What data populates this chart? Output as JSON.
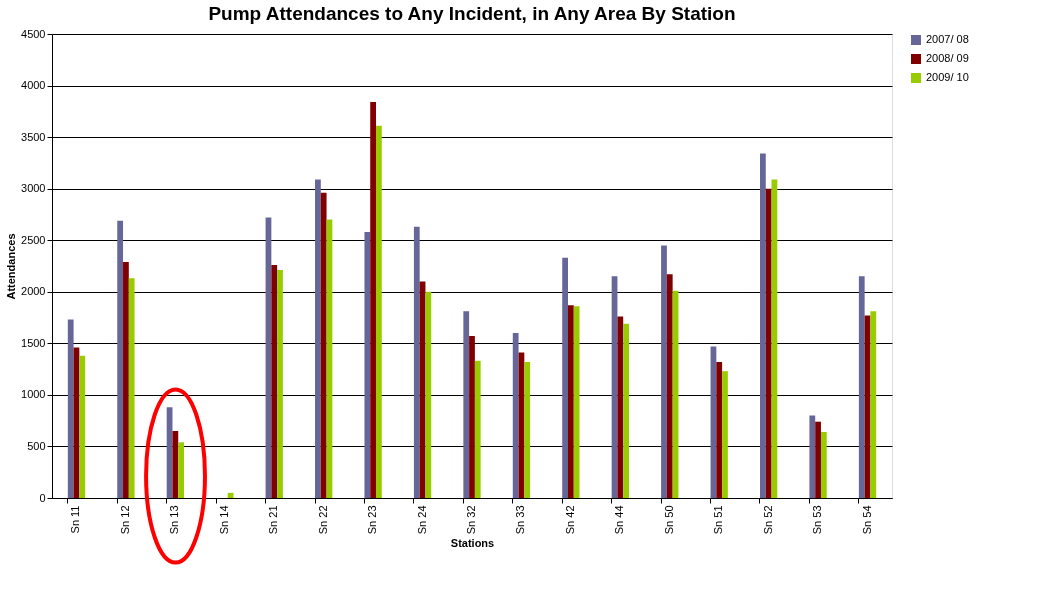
{
  "chart_data": {
    "type": "bar",
    "title": "Pump Attendances to Any Incident, in Any Area By Station",
    "xlabel": "Stations",
    "ylabel": "Attendances",
    "categories": [
      "Sn 11",
      "Sn 12",
      "Sn 13",
      "Sn 14",
      "Sn 21",
      "Sn 22",
      "Sn 23",
      "Sn 24",
      "Sn 32",
      "Sn 33",
      "Sn 42",
      "Sn 44",
      "Sn 50",
      "Sn 51",
      "Sn 52",
      "Sn 53",
      "Sn 54"
    ],
    "series": [
      {
        "name": "2007/ 08",
        "color": "#666699",
        "values": [
          1730,
          2690,
          880,
          null,
          2720,
          3090,
          2580,
          2630,
          1810,
          1600,
          2330,
          2150,
          2450,
          1470,
          3340,
          800,
          2150
        ]
      },
      {
        "name": "2008/ 09",
        "color": "#800000",
        "values": [
          1460,
          2290,
          650,
          null,
          2260,
          2960,
          3840,
          2100,
          1570,
          1410,
          1870,
          1760,
          2170,
          1320,
          3000,
          740,
          1770
        ]
      },
      {
        "name": "2009/ 10",
        "color": "#99cc00",
        "values": [
          1380,
          2130,
          540,
          50,
          2210,
          2700,
          3610,
          2000,
          1330,
          1320,
          1860,
          1690,
          2010,
          1230,
          3090,
          640,
          1810
        ]
      }
    ],
    "ylim": [
      0,
      4500
    ],
    "yticks": [
      0,
      500,
      1000,
      1500,
      2000,
      2500,
      3000,
      3500,
      4000,
      4500
    ],
    "grid": "y",
    "legend": "right"
  }
}
